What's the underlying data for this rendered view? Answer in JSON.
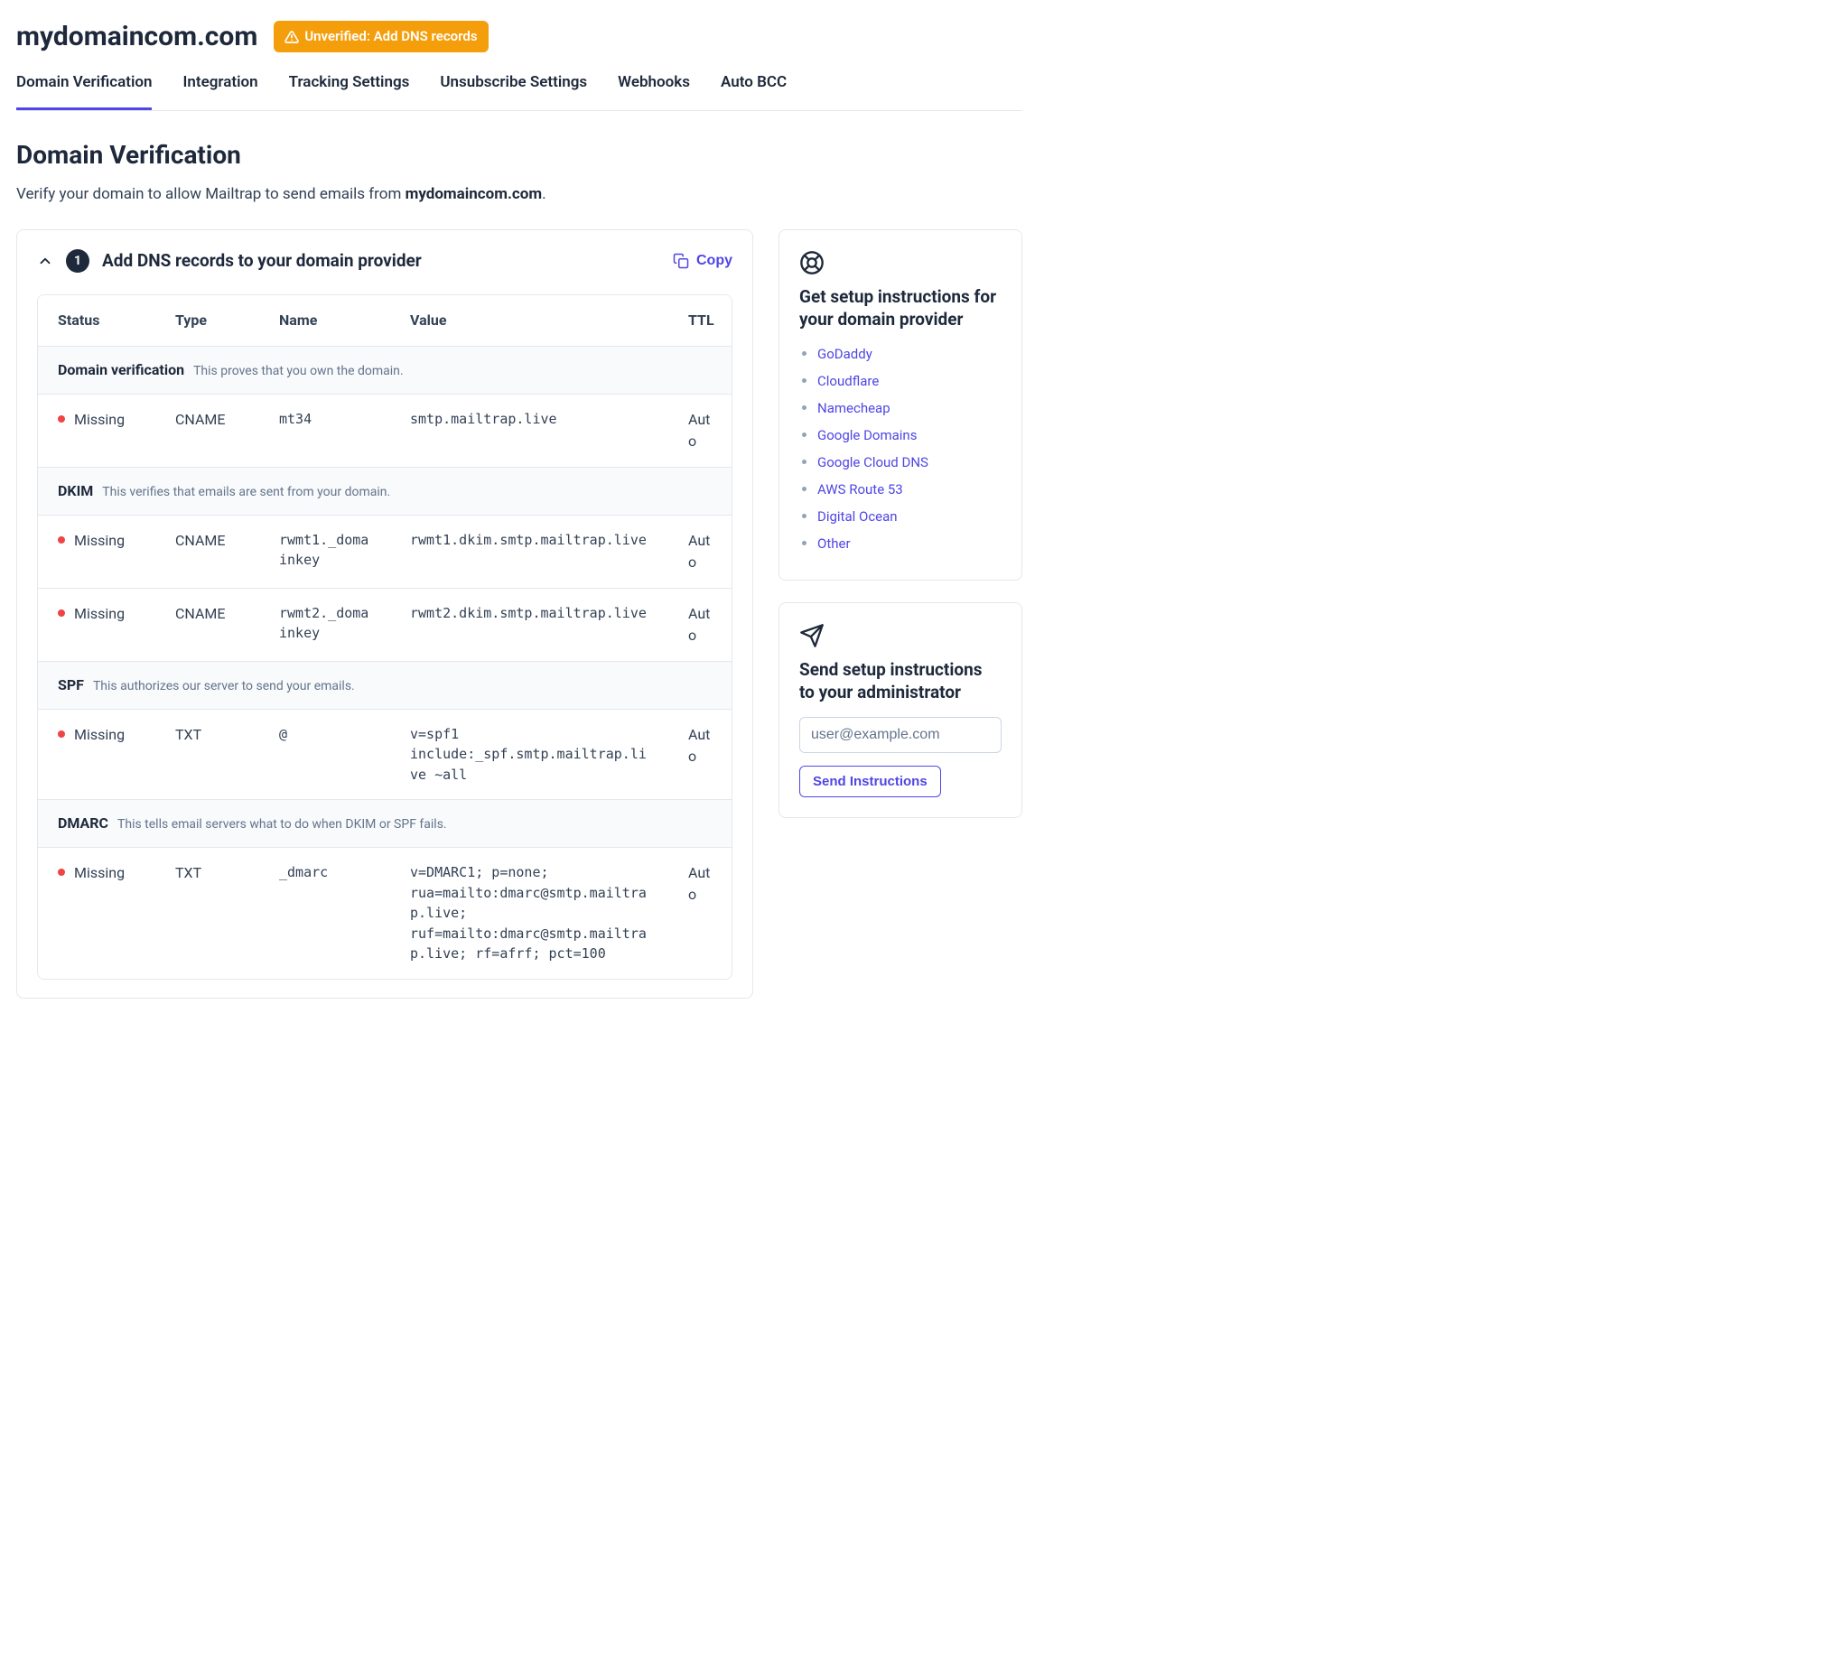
{
  "colors": {
    "text": "#1e293b",
    "subtext": "#64748b",
    "border": "#e5e7eb",
    "group_bg": "#f8fafc",
    "accent": "#4f46e5",
    "badge_bg": "#f59e0b",
    "badge_text": "#ffffff",
    "status_missing": "#ef4444",
    "white": "#ffffff"
  },
  "header": {
    "domain": "mydomaincom.com",
    "badge_label": "Unverified: Add DNS records"
  },
  "tabs": [
    {
      "label": "Domain Verification",
      "active": true
    },
    {
      "label": "Integration",
      "active": false
    },
    {
      "label": "Tracking Settings",
      "active": false
    },
    {
      "label": "Unsubscribe Settings",
      "active": false
    },
    {
      "label": "Webhooks",
      "active": false
    },
    {
      "label": "Auto BCC",
      "active": false
    }
  ],
  "section": {
    "title": "Domain Verification",
    "subtitle_prefix": "Verify your domain to allow Mailtrap to send emails from ",
    "subtitle_domain": "mydomaincom.com",
    "subtitle_suffix": "."
  },
  "panel": {
    "step_number": "1",
    "title": "Add DNS records to your domain provider",
    "copy_label": "Copy"
  },
  "table": {
    "columns": {
      "status": "Status",
      "type": "Type",
      "name": "Name",
      "value": "Value",
      "ttl": "TTL"
    },
    "groups": [
      {
        "name": "Domain verification",
        "desc": "This proves that you own the domain.",
        "rows": [
          {
            "status": "Missing",
            "type": "CNAME",
            "name": "mt34",
            "value": "smtp.mailtrap.live",
            "ttl": "Auto"
          }
        ]
      },
      {
        "name": "DKIM",
        "desc": "This verifies that emails are sent from your domain.",
        "rows": [
          {
            "status": "Missing",
            "type": "CNAME",
            "name": "rwmt1._domainkey",
            "value": "rwmt1.dkim.smtp.mailtrap.live",
            "ttl": "Auto"
          },
          {
            "status": "Missing",
            "type": "CNAME",
            "name": "rwmt2._domainkey",
            "value": "rwmt2.dkim.smtp.mailtrap.live",
            "ttl": "Auto"
          }
        ]
      },
      {
        "name": "SPF",
        "desc": "This authorizes our server to send your emails.",
        "rows": [
          {
            "status": "Missing",
            "type": "TXT",
            "name": "@",
            "value": "v=spf1 include:_spf.smtp.mailtrap.live ~all",
            "ttl": "Auto"
          }
        ]
      },
      {
        "name": "DMARC",
        "desc": "This tells email servers what to do when DKIM or SPF fails.",
        "rows": [
          {
            "status": "Missing",
            "type": "TXT",
            "name": "_dmarc",
            "value": "v=DMARC1; p=none; rua=mailto:dmarc@smtp.mailtrap.live; ruf=mailto:dmarc@smtp.mailtrap.live; rf=afrf; pct=100",
            "ttl": "Auto"
          }
        ]
      }
    ]
  },
  "sidebar": {
    "instructions": {
      "title": "Get setup instructions for your domain provider",
      "providers": [
        "GoDaddy",
        "Cloudflare",
        "Namecheap",
        "Google Domains",
        "Google Cloud DNS",
        "AWS Route 53",
        "Digital Ocean",
        "Other"
      ]
    },
    "send": {
      "title": "Send setup instructions to your administrator",
      "placeholder": "user@example.com",
      "button": "Send Instructions"
    }
  }
}
